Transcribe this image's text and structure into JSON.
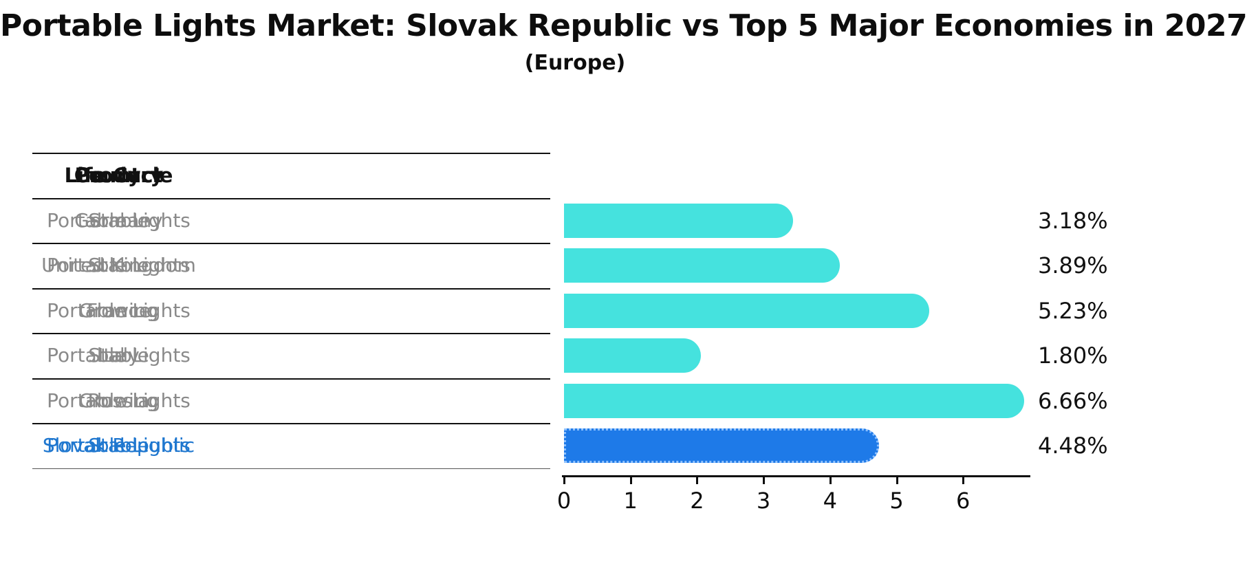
{
  "title": "Portable Lights Market: Slovak Republic vs Top 5 Major Economies in 2027",
  "subtitle": "(Europe)",
  "table": {
    "headers": [
      "Country",
      "Product",
      "Life Cycle"
    ],
    "rows": [
      {
        "country": "Germany",
        "product": "Portable Lights",
        "life_cycle": "Stable",
        "highlight": false
      },
      {
        "country": "United Kingdom",
        "product": "Portable Lights",
        "life_cycle": "Stable",
        "highlight": false
      },
      {
        "country": "France",
        "product": "Portable Lights",
        "life_cycle": "Growing",
        "highlight": false
      },
      {
        "country": "Italy",
        "product": "Portable Lights",
        "life_cycle": "Stable",
        "highlight": false
      },
      {
        "country": "Russia",
        "product": "Portable Lights",
        "life_cycle": "Growing",
        "highlight": false
      },
      {
        "country": "Slovak Republic",
        "product": "Portable Lights",
        "life_cycle": "Stable",
        "highlight": true
      }
    ]
  },
  "chart_data": {
    "type": "bar",
    "orientation": "horizontal",
    "categories": [
      "Germany",
      "United Kingdom",
      "France",
      "Italy",
      "Russia",
      "Slovak Republic"
    ],
    "values": [
      3.18,
      3.89,
      5.23,
      1.8,
      6.66,
      4.48
    ],
    "value_labels": [
      "3.18%",
      "3.89%",
      "5.23%",
      "1.80%",
      "6.66%",
      "4.48%"
    ],
    "x_ticks": [
      0,
      1,
      2,
      3,
      4,
      5,
      6
    ],
    "xlim": [
      0,
      7.0
    ],
    "grid": false,
    "legend": "none",
    "title": "Portable Lights Market: Slovak Republic vs Top 5 Major Economies in 2027 (Europe)",
    "xlabel": "",
    "ylabel": "",
    "highlight_index": 5
  },
  "colors": {
    "bar": "#45e2de",
    "highlight_bar": "#1e7ae8",
    "highlight_text": "#1f77cf",
    "table_text": "#8a8a8a",
    "header_text": "#111111",
    "axis": "#0d0d0d"
  }
}
